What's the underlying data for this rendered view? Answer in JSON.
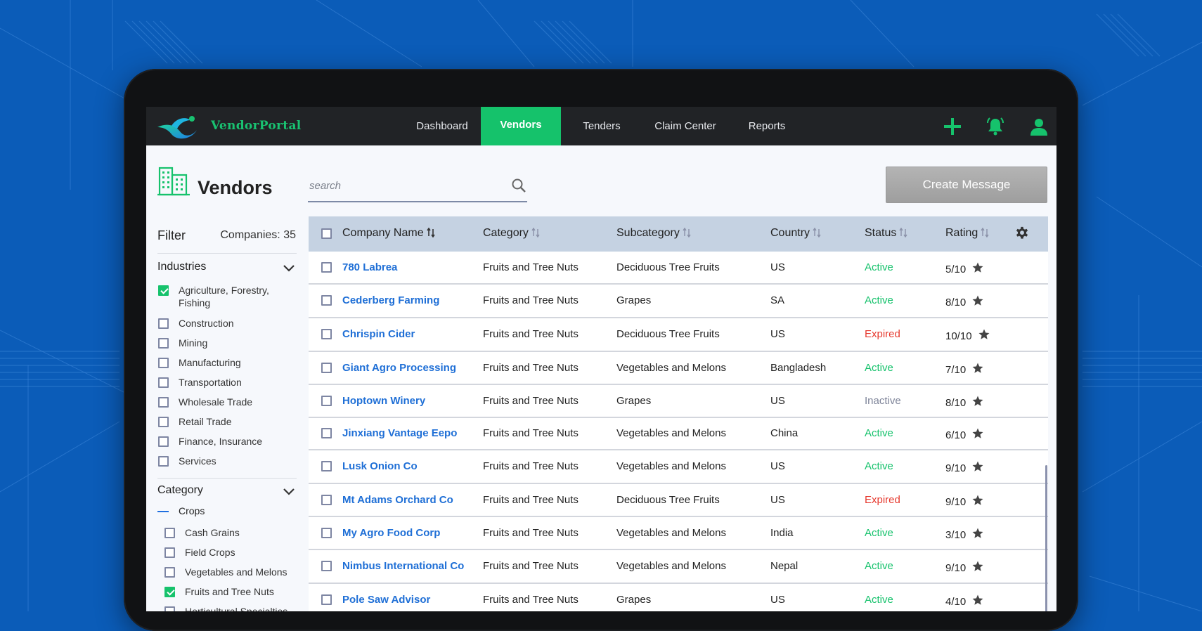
{
  "nav": {
    "brand": "VendorPortal",
    "items": [
      {
        "label": "Dashboard",
        "active": false
      },
      {
        "label": "Vendors",
        "active": true
      },
      {
        "label": "Tenders",
        "active": false
      },
      {
        "label": "Claim Center",
        "active": false
      },
      {
        "label": "Reports",
        "active": false
      }
    ],
    "icons": [
      "plus-icon",
      "bell-icon",
      "user-icon"
    ],
    "accent": "#15c26b"
  },
  "header": {
    "title": "Vendors",
    "search_placeholder": "search",
    "create_label": "Create Message"
  },
  "filter": {
    "title": "Filter",
    "companies_label": "Companies: 35",
    "industries": {
      "title": "Industries",
      "items": [
        {
          "label": "Agriculture, Forestry, Fishing",
          "checked": true
        },
        {
          "label": "Construction",
          "checked": false
        },
        {
          "label": "Mining",
          "checked": false
        },
        {
          "label": "Manufacturing",
          "checked": false
        },
        {
          "label": "Transportation",
          "checked": false
        },
        {
          "label": "Wholesale Trade",
          "checked": false
        },
        {
          "label": "Retail Trade",
          "checked": false
        },
        {
          "label": "Finance, Insurance",
          "checked": false
        },
        {
          "label": "Services",
          "checked": false
        }
      ]
    },
    "category": {
      "title": "Category",
      "subgroup": "Crops",
      "items": [
        {
          "label": "Cash Grains",
          "checked": false
        },
        {
          "label": "Field Crops",
          "checked": false
        },
        {
          "label": "Vegetables and Melons",
          "checked": false
        },
        {
          "label": "Fruits and Tree Nuts",
          "checked": true
        },
        {
          "label": "Horticultural Specialties",
          "checked": false
        }
      ]
    }
  },
  "table": {
    "columns": [
      "Company Name",
      "Category",
      "Subcategory",
      "Country",
      "Status",
      "Rating"
    ],
    "rows": [
      {
        "company": "780 Labrea",
        "category": "Fruits and Tree Nuts",
        "subcategory": "Deciduous Tree Fruits",
        "country": "US",
        "status": "Active",
        "rating": "5/10"
      },
      {
        "company": "Cederberg Farming",
        "category": "Fruits and Tree Nuts",
        "subcategory": "Grapes",
        "country": "SA",
        "status": "Active",
        "rating": "8/10"
      },
      {
        "company": "Chrispin Cider",
        "category": "Fruits and Tree Nuts",
        "subcategory": "Deciduous Tree Fruits",
        "country": "US",
        "status": "Expired",
        "rating": "10/10"
      },
      {
        "company": "Giant Agro Processing",
        "category": "Fruits and Tree Nuts",
        "subcategory": "Vegetables and Melons",
        "country": "Bangladesh",
        "status": "Active",
        "rating": "7/10"
      },
      {
        "company": "Hoptown Winery",
        "category": "Fruits and Tree Nuts",
        "subcategory": "Grapes",
        "country": "US",
        "status": "Inactive",
        "rating": "8/10"
      },
      {
        "company": "Jinxiang Vantage Eepo",
        "category": "Fruits and Tree Nuts",
        "subcategory": "Vegetables and Melons",
        "country": "China",
        "status": "Active",
        "rating": "6/10"
      },
      {
        "company": "Lusk Onion Co",
        "category": "Fruits and Tree Nuts",
        "subcategory": "Vegetables and Melons",
        "country": "US",
        "status": "Active",
        "rating": "9/10"
      },
      {
        "company": "Mt Adams Orchard Co",
        "category": "Fruits and Tree Nuts",
        "subcategory": "Deciduous Tree Fruits",
        "country": "US",
        "status": "Expired",
        "rating": "9/10"
      },
      {
        "company": "My Agro Food Corp",
        "category": "Fruits and Tree Nuts",
        "subcategory": "Vegetables and Melons",
        "country": "India",
        "status": "Active",
        "rating": "3/10"
      },
      {
        "company": "Nimbus International Co",
        "category": "Fruits and Tree Nuts",
        "subcategory": "Vegetables and Melons",
        "country": "Nepal",
        "status": "Active",
        "rating": "9/10"
      },
      {
        "company": "Pole Saw Advisor",
        "category": "Fruits and Tree Nuts",
        "subcategory": "Grapes",
        "country": "US",
        "status": "Active",
        "rating": "4/10"
      }
    ]
  },
  "colors": {
    "active": "#16c26c",
    "expired": "#e6392e",
    "inactive": "#7e8499",
    "link": "#1f6fd6",
    "header_bg": "#c5d2e2"
  }
}
